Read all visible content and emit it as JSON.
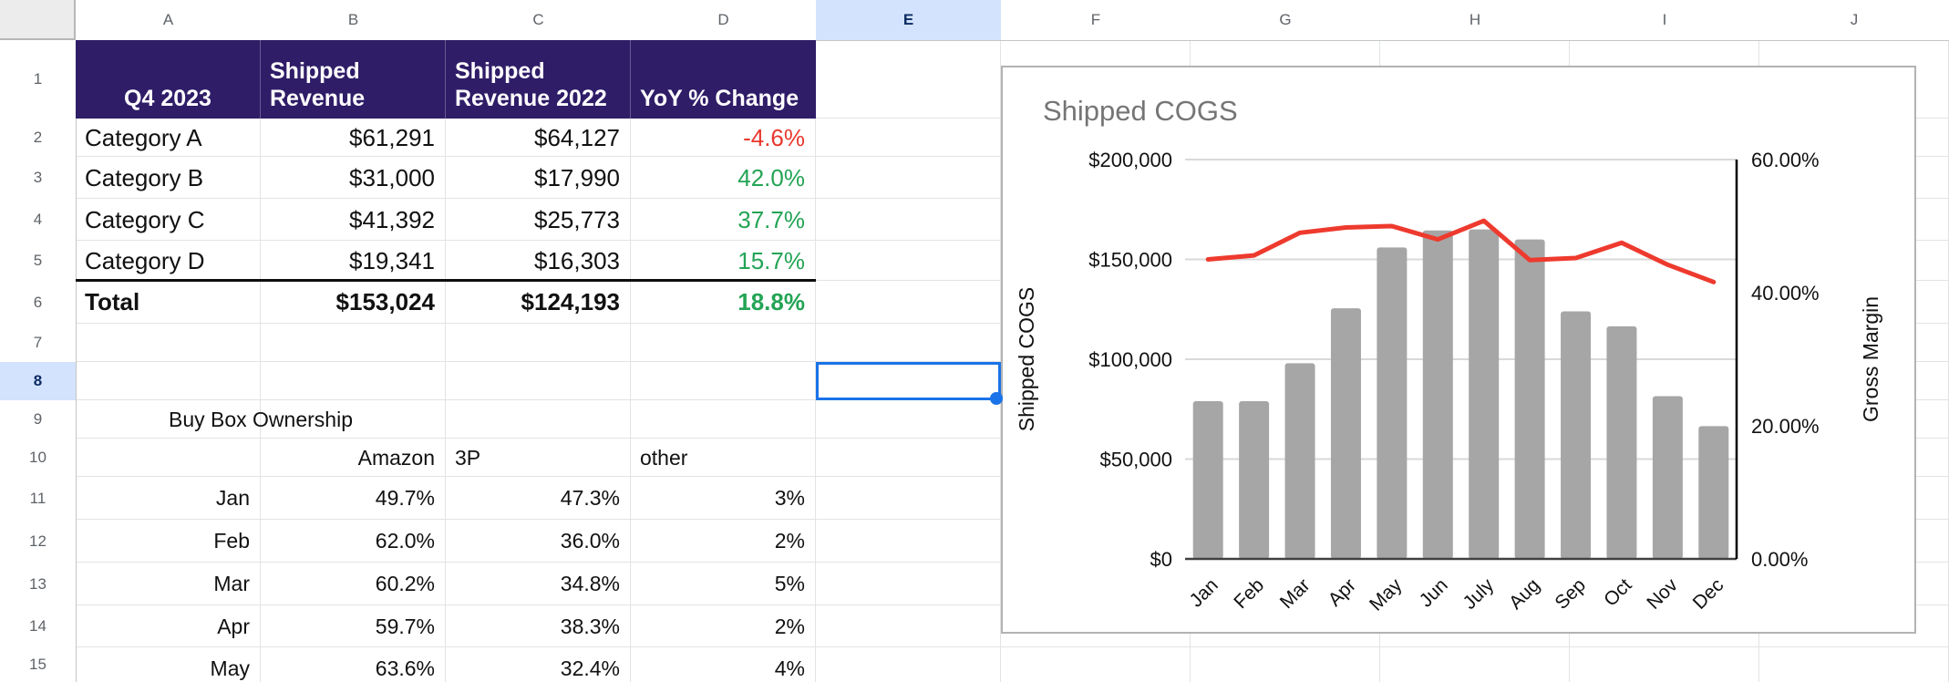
{
  "sheet": {
    "column_headers": [
      "A",
      "B",
      "C",
      "D",
      "E",
      "F",
      "G",
      "H",
      "I",
      "J"
    ],
    "row_headers": [
      "1",
      "2",
      "3",
      "4",
      "5",
      "6",
      "7",
      "8",
      "9",
      "10",
      "11",
      "12",
      "13",
      "14",
      "15"
    ],
    "selected_column": "E",
    "selected_row": "8",
    "selected_cell": "E8"
  },
  "q4_table": {
    "headers": [
      "Q4 2023",
      "Shipped Revenue",
      "Shipped Revenue 2022",
      "YoY % Change"
    ],
    "rows": [
      {
        "label": "Category A",
        "revenue": "$61,291",
        "revenue_2022": "$64,127",
        "yoy": "-4.6%",
        "yoy_state": "negative"
      },
      {
        "label": "Category B",
        "revenue": "$31,000",
        "revenue_2022": "$17,990",
        "yoy": "42.0%",
        "yoy_state": "positive"
      },
      {
        "label": "Category C",
        "revenue": "$41,392",
        "revenue_2022": "$25,773",
        "yoy": "37.7%",
        "yoy_state": "positive"
      },
      {
        "label": "Category D",
        "revenue": "$19,341",
        "revenue_2022": "$16,303",
        "yoy": "15.7%",
        "yoy_state": "positive"
      }
    ],
    "total": {
      "label": "Total",
      "revenue": "$153,024",
      "revenue_2022": "$124,193",
      "yoy": "18.8%",
      "yoy_state": "positive"
    }
  },
  "buy_box": {
    "title": "Buy Box Ownership",
    "columns": [
      "Amazon",
      "3P",
      "other"
    ],
    "rows": [
      {
        "month": "Jan",
        "amazon": "49.7%",
        "p3": "47.3%",
        "other": "3%"
      },
      {
        "month": "Feb",
        "amazon": "62.0%",
        "p3": "36.0%",
        "other": "2%"
      },
      {
        "month": "Mar",
        "amazon": "60.2%",
        "p3": "34.8%",
        "other": "5%"
      },
      {
        "month": "Apr",
        "amazon": "59.7%",
        "p3": "38.3%",
        "other": "2%"
      },
      {
        "month": "May",
        "amazon": "63.6%",
        "p3": "32.4%",
        "other": "4%"
      }
    ]
  },
  "chart_data": {
    "type": "combo",
    "title": "Shipped COGS",
    "categories": [
      "Jan",
      "Feb",
      "Mar",
      "Apr",
      "May",
      "Jun",
      "July",
      "Aug",
      "Sep",
      "Oct",
      "Nov",
      "Dec"
    ],
    "series": [
      {
        "name": "Shipped COGS",
        "type": "bar",
        "axis": "left",
        "values": [
          79000,
          79000,
          98000,
          125500,
          156000,
          164500,
          165000,
          160000,
          124000,
          116500,
          81500,
          66500
        ]
      },
      {
        "name": "Gross Margin",
        "type": "line",
        "axis": "right",
        "values": [
          45.0,
          45.6,
          49.0,
          49.8,
          50.0,
          48.0,
          50.8,
          44.9,
          45.2,
          47.5,
          44.2,
          41.6
        ]
      }
    ],
    "left_axis": {
      "label": "Shipped COGS",
      "min": 0,
      "max": 200000,
      "ticks": [
        "$0",
        "$50,000",
        "$100,000",
        "$150,000",
        "$200,000"
      ]
    },
    "right_axis": {
      "label": "Gross Margin",
      "min": 0,
      "max": 60,
      "ticks": [
        "0.00%",
        "20.00%",
        "40.00%",
        "60.00%"
      ]
    },
    "legend": "none",
    "grid": true
  },
  "colors": {
    "positive": "#23a455",
    "negative": "#e8382d",
    "table_header_bg": "#2f1d68",
    "table_header_text": "#ffffff",
    "selection": "#1a73e8",
    "bar": "#a6a6a6",
    "line": "#ee3a2e",
    "chart_title": "#757575",
    "chart_border": "#b3b3b3",
    "sheet_grid": "#e2e3e3"
  }
}
